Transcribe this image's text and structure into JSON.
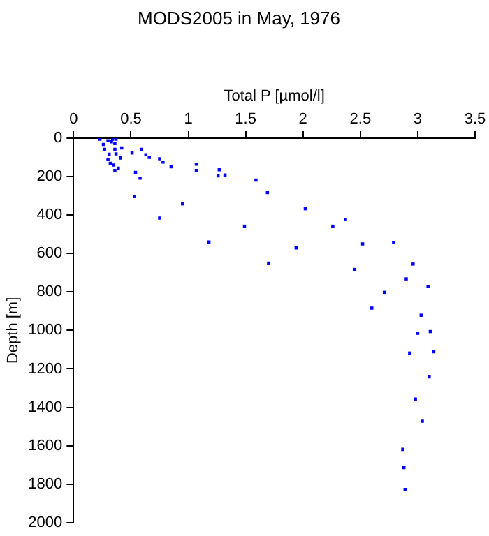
{
  "chart_data": {
    "type": "scatter",
    "title": "MODS2005 in May, 1976",
    "xlabel": "Total P [µmol/l]",
    "ylabel": "Depth [m]",
    "xlim": [
      0,
      3.5
    ],
    "xticks": [
      0,
      0.5,
      1,
      1.5,
      2,
      2.5,
      3,
      3.5
    ],
    "ylim": [
      2000,
      0
    ],
    "yticks": [
      0,
      200,
      400,
      600,
      800,
      1000,
      1200,
      1400,
      1600,
      1800,
      2000
    ],
    "grid": false,
    "legend": false,
    "marker": "square",
    "series": [
      {
        "color": "#0000ff",
        "x": [
          0.23,
          0.26,
          0.27,
          0.3,
          0.33,
          0.34,
          0.37,
          0.36,
          0.31,
          0.3,
          0.32,
          0.35,
          0.36,
          0.39,
          0.36,
          0.37,
          0.42,
          0.41,
          0.51,
          0.59,
          0.63,
          0.66,
          0.75,
          0.78,
          0.85,
          1.07,
          1.07,
          1.27,
          1.26,
          1.32,
          0.54,
          0.58,
          0.53,
          0.75,
          0.95,
          1.18,
          1.49,
          1.59,
          1.69,
          1.7,
          2.02,
          2.37,
          2.26,
          2.52,
          2.79,
          1.94,
          2.45,
          2.96,
          2.9,
          3.09,
          2.71,
          2.6,
          3.03,
          3.11,
          3.0,
          2.93,
          3.14,
          3.1,
          2.98,
          3.04,
          2.87,
          2.88,
          2.89
        ],
        "values": [
          5,
          33,
          58,
          14,
          19,
          5,
          5,
          28,
          84,
          112,
          131,
          140,
          168,
          156,
          58,
          82,
          51,
          103,
          77,
          58,
          86,
          100,
          107,
          124,
          149,
          135,
          168,
          164,
          196,
          192,
          178,
          208,
          304,
          416,
          342,
          540,
          458,
          218,
          283,
          650,
          367,
          423,
          458,
          550,
          543,
          571,
          683,
          655,
          732,
          772,
          802,
          884,
          921,
          1006,
          1015,
          1118,
          1111,
          1242,
          1357,
          1472,
          1619,
          1714,
          1827
        ]
      }
    ]
  }
}
